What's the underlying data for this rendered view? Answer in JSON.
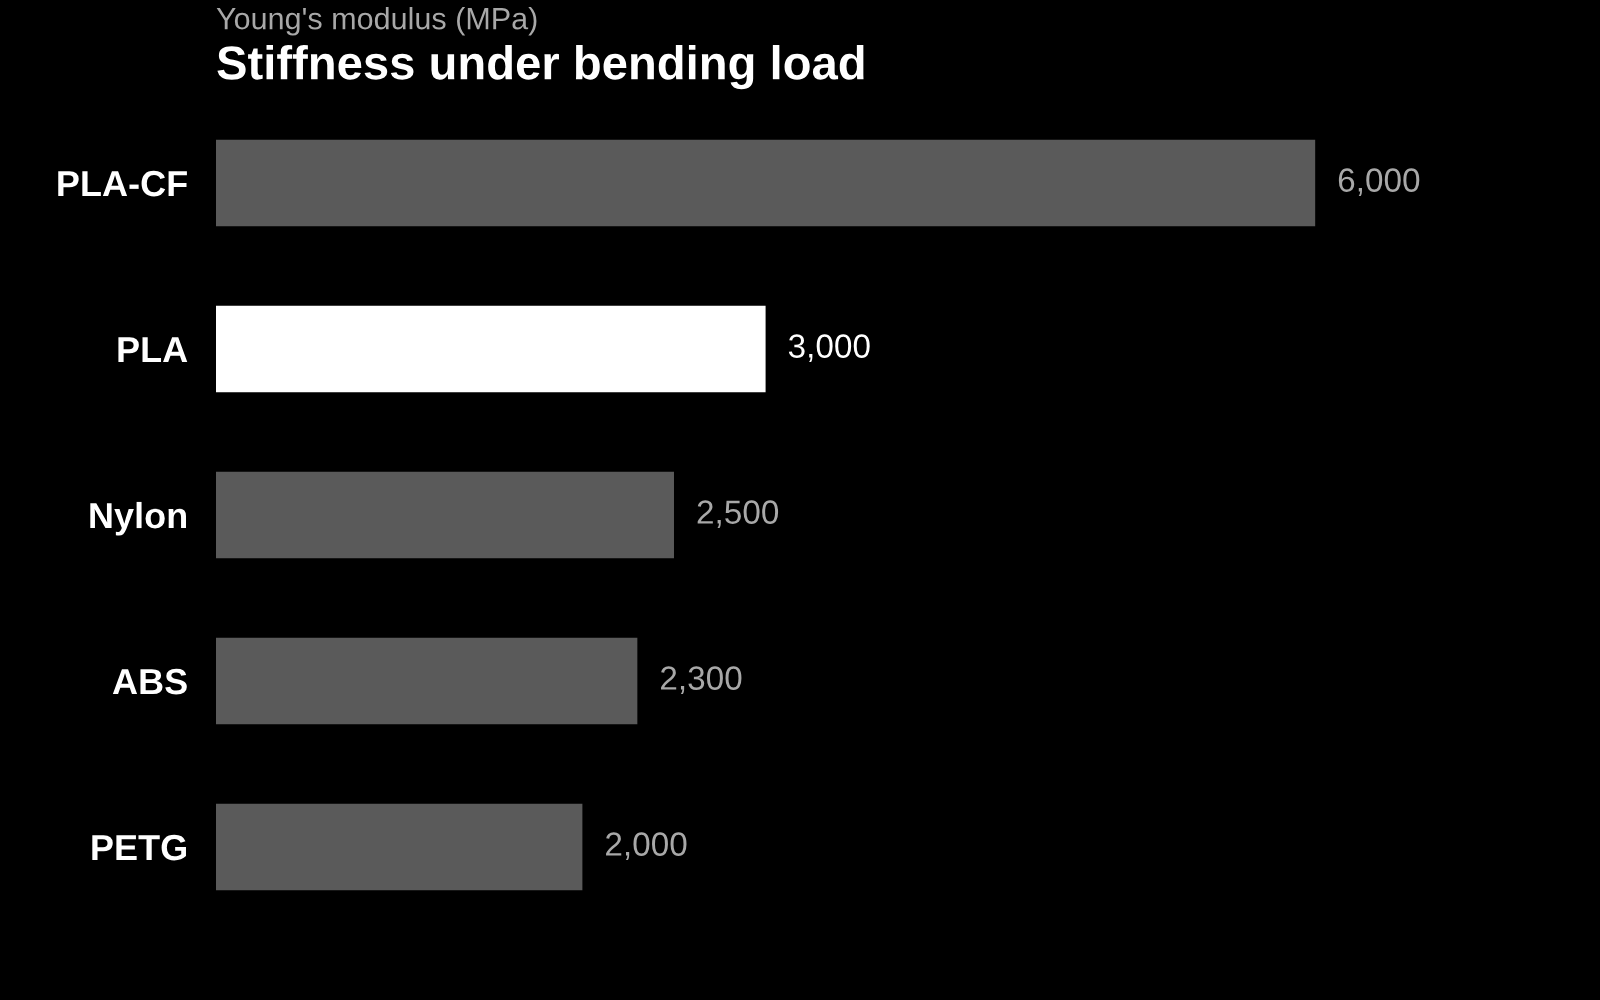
{
  "chart_data": {
    "type": "bar",
    "orientation": "horizontal",
    "subtitle": "Young's modulus (MPa)",
    "title": "Stiffness under bending load",
    "categories": [
      "PLA-CF",
      "PLA",
      "Nylon",
      "ABS",
      "PETG"
    ],
    "values": [
      6000,
      3000,
      2500,
      2300,
      2000
    ],
    "colors": [
      "#5a5a5a",
      "#ffffff",
      "#5a5a5a",
      "#5a5a5a",
      "#5a5a5a"
    ],
    "value_labels": [
      "6,000",
      "3,000",
      "2,500",
      "2,300",
      "2,000"
    ],
    "grid": false,
    "legend": false
  }
}
